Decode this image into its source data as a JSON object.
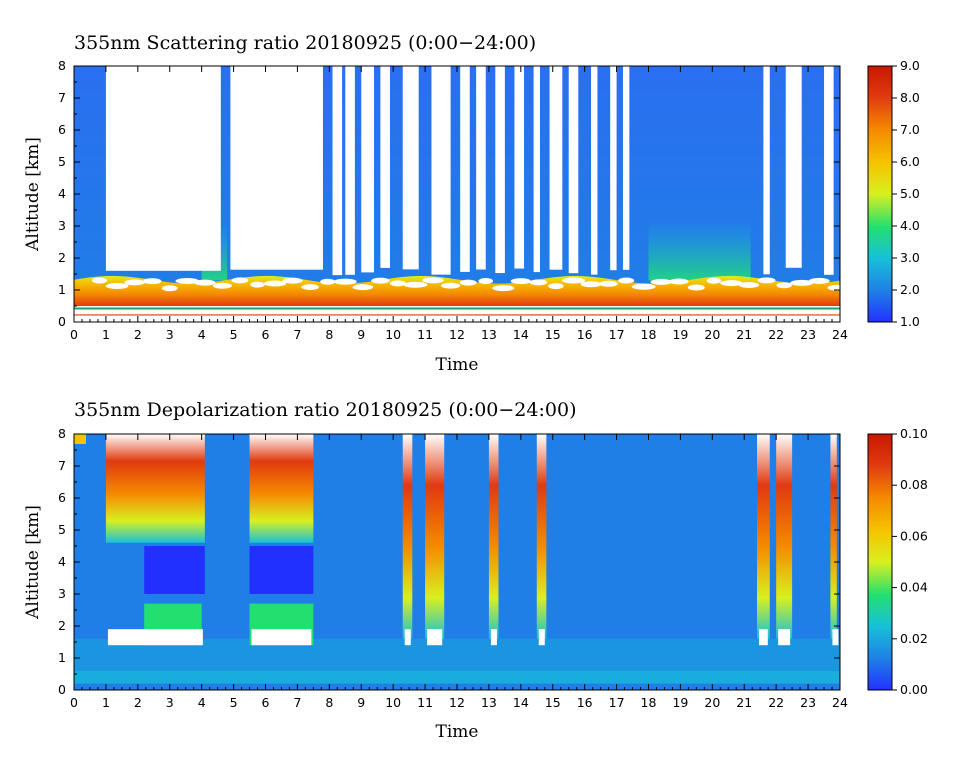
{
  "chart_data": [
    {
      "type": "heatmap",
      "title": "355nm Scattering ratio  20180925 (0:00−24:00)",
      "xlabel": "Time",
      "ylabel": "Altitude [km]",
      "xlim": [
        0,
        24
      ],
      "ylim": [
        0,
        8
      ],
      "x_ticks": [
        "0",
        "1",
        "2",
        "3",
        "4",
        "5",
        "6",
        "7",
        "8",
        "9",
        "10",
        "11",
        "12",
        "13",
        "14",
        "15",
        "16",
        "17",
        "18",
        "19",
        "20",
        "21",
        "22",
        "23",
        "24"
      ],
      "y_ticks": [
        "0",
        "1",
        "2",
        "3",
        "4",
        "5",
        "6",
        "7",
        "8"
      ],
      "colorbar": {
        "min": 1.0,
        "max": 9.0,
        "tick_labels": [
          "1.0",
          "2.0",
          "3.0",
          "4.0",
          "5.0",
          "6.0",
          "7.0",
          "8.0",
          "9.0"
        ]
      },
      "colormap": [
        "#2230ff",
        "#1f7fe6",
        "#17c0d8",
        "#22e070",
        "#d8f020",
        "#f5c400",
        "#f58a00",
        "#e03a10",
        "#c81800"
      ],
      "no_data_color": "#ffffff",
      "features": {
        "aerosol_layer_top_km": [
          1.2,
          1.6
        ],
        "cloud_gaps_hours": [
          [
            1.0,
            4.6
          ],
          [
            4.9,
            7.8
          ],
          [
            8.1,
            8.4
          ],
          [
            8.5,
            8.8
          ],
          [
            9.0,
            9.4
          ],
          [
            9.6,
            9.9
          ],
          [
            10.3,
            10.8
          ],
          [
            11.2,
            11.8
          ],
          [
            12.1,
            12.4
          ],
          [
            12.6,
            12.9
          ],
          [
            13.2,
            13.5
          ],
          [
            13.8,
            14.1
          ],
          [
            14.4,
            14.6
          ],
          [
            14.9,
            15.3
          ],
          [
            15.5,
            15.8
          ],
          [
            16.2,
            16.4
          ],
          [
            16.8,
            17.0
          ],
          [
            17.2,
            17.4
          ],
          [
            21.6,
            21.8
          ],
          [
            22.3,
            22.8
          ],
          [
            23.5,
            23.8
          ]
        ],
        "elevated_layer_hours": [
          [
            4.0,
            4.8
          ],
          [
            18.0,
            21.2
          ]
        ]
      }
    },
    {
      "type": "heatmap",
      "title": "355nm Depolarization ratio  20180925 (0:00−24:00)",
      "xlabel": "Time",
      "ylabel": "Altitude [km]",
      "xlim": [
        0,
        24
      ],
      "ylim": [
        0,
        8
      ],
      "x_ticks": [
        "0",
        "1",
        "2",
        "3",
        "4",
        "5",
        "6",
        "7",
        "8",
        "9",
        "10",
        "11",
        "12",
        "13",
        "14",
        "15",
        "16",
        "17",
        "18",
        "19",
        "20",
        "21",
        "22",
        "23",
        "24"
      ],
      "y_ticks": [
        "0",
        "1",
        "2",
        "3",
        "4",
        "5",
        "6",
        "7",
        "8"
      ],
      "colorbar": {
        "min": 0.0,
        "max": 0.1,
        "tick_labels": [
          "0.00",
          "0.02",
          "0.04",
          "0.06",
          "0.08",
          "0.10"
        ]
      },
      "colormap": [
        "#2230ff",
        "#1f7fe6",
        "#17c0d8",
        "#22e070",
        "#d8f020",
        "#f5c400",
        "#f58a00",
        "#e03a10",
        "#c81800"
      ],
      "no_data_color": "#ffffff",
      "features": {
        "ice_cloud_hours": [
          [
            1.0,
            4.1
          ],
          [
            5.5,
            7.5
          ],
          [
            10.3,
            10.6
          ],
          [
            11.0,
            11.6
          ],
          [
            13.0,
            13.3
          ],
          [
            14.5,
            14.8
          ],
          [
            21.4,
            21.8
          ],
          [
            22.0,
            22.5
          ],
          [
            23.7,
            23.9
          ]
        ],
        "low_depol_band_km": [
          3.0,
          4.5
        ],
        "dust_layer_km": [
          1.4,
          2.7
        ]
      }
    }
  ]
}
